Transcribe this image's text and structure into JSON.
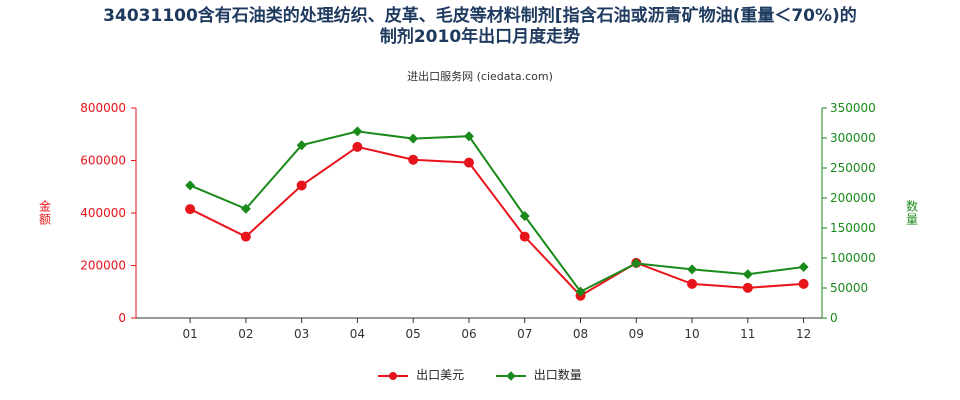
{
  "title_line1": "34031100含有石油类的处理纺织、皮革、毛皮等材料制剂[指含石油或沥青矿物油(重量＜70%)的",
  "title_line2": "制剂2010年出口月度走势",
  "subtitle": "进出口服务网 (ciedata.com)",
  "chart_data": {
    "type": "line",
    "categories": [
      "01",
      "02",
      "03",
      "04",
      "05",
      "06",
      "07",
      "08",
      "09",
      "10",
      "11",
      "12"
    ],
    "series": [
      {
        "name": "出口美元",
        "axis": "left",
        "color": "#e8141b",
        "marker": "circle",
        "values": [
          415000,
          310000,
          505000,
          652000,
          603000,
          592000,
          310000,
          85000,
          210000,
          130000,
          115000,
          130000
        ]
      },
      {
        "name": "出口数量",
        "axis": "right",
        "color": "#1a8a1a",
        "marker": "diamond",
        "values": [
          221000,
          182000,
          288000,
          311000,
          299000,
          303000,
          170000,
          44000,
          91000,
          81000,
          73000,
          85000
        ]
      }
    ],
    "ylabel_left": "金额",
    "ylabel_right": "数量",
    "ylim_left": [
      0,
      800000
    ],
    "yticks_left": [
      "0",
      "200000",
      "400000",
      "600000",
      "800000"
    ],
    "ylim_right": [
      0,
      350000
    ],
    "yticks_right": [
      "0",
      "50000",
      "100000",
      "150000",
      "200000",
      "250000",
      "300000",
      "350000"
    ],
    "left_axis_color": "#e8141b",
    "right_axis_color": "#1a8a1a",
    "grid": false,
    "legend_position": "bottom"
  }
}
